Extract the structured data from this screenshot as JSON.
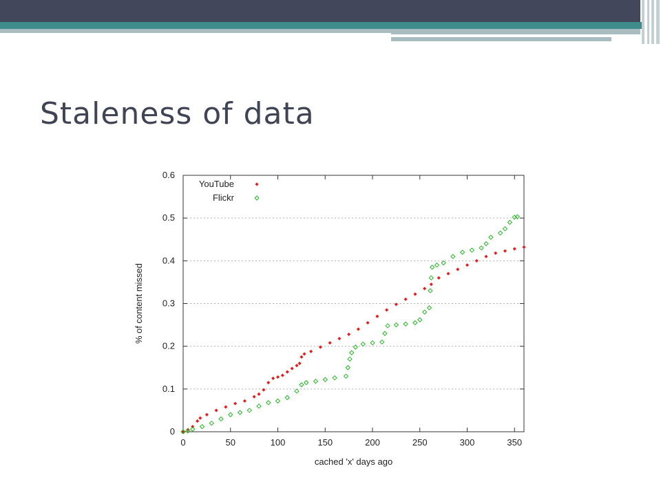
{
  "slide": {
    "title": "Staleness of data"
  },
  "colors": {
    "header_dark": "#43475b",
    "header_teal": "#3f8c8c",
    "header_gray": "#a9bdc1",
    "title": "#404556",
    "youtube": "#e01f1f",
    "flickr": "#22b522"
  },
  "chart_data": {
    "type": "scatter",
    "title": "",
    "xlabel": "cached 'x' days ago",
    "ylabel": "% of content missed",
    "xlim": [
      0,
      360
    ],
    "ylim": [
      0,
      0.6
    ],
    "xticks": [
      "0",
      "50",
      "100",
      "150",
      "200",
      "250",
      "300",
      "350"
    ],
    "yticks": [
      "0",
      "0.1",
      "0.2",
      "0.3",
      "0.4",
      "0.5",
      "0.6"
    ],
    "grid": "horizontal dotted",
    "legend_position": "top-left",
    "series": [
      {
        "name": "YouTube",
        "marker": "filled-diamond",
        "points": [
          [
            0,
            0
          ],
          [
            5,
            0.005
          ],
          [
            10,
            0.012
          ],
          [
            15,
            0.025
          ],
          [
            18,
            0.032
          ],
          [
            25,
            0.04
          ],
          [
            35,
            0.05
          ],
          [
            45,
            0.058
          ],
          [
            55,
            0.066
          ],
          [
            65,
            0.072
          ],
          [
            75,
            0.082
          ],
          [
            80,
            0.088
          ],
          [
            85,
            0.098
          ],
          [
            90,
            0.115
          ],
          [
            95,
            0.125
          ],
          [
            100,
            0.128
          ],
          [
            105,
            0.132
          ],
          [
            110,
            0.14
          ],
          [
            115,
            0.148
          ],
          [
            120,
            0.155
          ],
          [
            123,
            0.16
          ],
          [
            125,
            0.175
          ],
          [
            128,
            0.182
          ],
          [
            135,
            0.188
          ],
          [
            145,
            0.198
          ],
          [
            155,
            0.208
          ],
          [
            165,
            0.218
          ],
          [
            175,
            0.228
          ],
          [
            185,
            0.24
          ],
          [
            195,
            0.255
          ],
          [
            205,
            0.27
          ],
          [
            215,
            0.285
          ],
          [
            225,
            0.298
          ],
          [
            235,
            0.31
          ],
          [
            245,
            0.322
          ],
          [
            255,
            0.335
          ],
          [
            262,
            0.345
          ],
          [
            270,
            0.36
          ],
          [
            280,
            0.37
          ],
          [
            290,
            0.38
          ],
          [
            300,
            0.39
          ],
          [
            310,
            0.4
          ],
          [
            320,
            0.41
          ],
          [
            330,
            0.418
          ],
          [
            340,
            0.423
          ],
          [
            350,
            0.428
          ],
          [
            360,
            0.432
          ]
        ]
      },
      {
        "name": "Flickr",
        "marker": "open-diamond",
        "points": [
          [
            0,
            0
          ],
          [
            5,
            0.002
          ],
          [
            10,
            0.006
          ],
          [
            20,
            0.012
          ],
          [
            30,
            0.02
          ],
          [
            40,
            0.03
          ],
          [
            50,
            0.04
          ],
          [
            60,
            0.045
          ],
          [
            70,
            0.05
          ],
          [
            80,
            0.06
          ],
          [
            90,
            0.068
          ],
          [
            100,
            0.072
          ],
          [
            110,
            0.08
          ],
          [
            120,
            0.095
          ],
          [
            125,
            0.11
          ],
          [
            130,
            0.115
          ],
          [
            140,
            0.118
          ],
          [
            150,
            0.122
          ],
          [
            160,
            0.126
          ],
          [
            172,
            0.13
          ],
          [
            174,
            0.15
          ],
          [
            176,
            0.17
          ],
          [
            178,
            0.185
          ],
          [
            182,
            0.198
          ],
          [
            190,
            0.205
          ],
          [
            200,
            0.208
          ],
          [
            210,
            0.21
          ],
          [
            213,
            0.23
          ],
          [
            216,
            0.248
          ],
          [
            225,
            0.25
          ],
          [
            235,
            0.252
          ],
          [
            245,
            0.255
          ],
          [
            250,
            0.262
          ],
          [
            255,
            0.28
          ],
          [
            260,
            0.29
          ],
          [
            261,
            0.33
          ],
          [
            262,
            0.36
          ],
          [
            263,
            0.385
          ],
          [
            268,
            0.39
          ],
          [
            275,
            0.395
          ],
          [
            285,
            0.41
          ],
          [
            295,
            0.42
          ],
          [
            305,
            0.425
          ],
          [
            315,
            0.43
          ],
          [
            320,
            0.44
          ],
          [
            325,
            0.455
          ],
          [
            335,
            0.465
          ],
          [
            340,
            0.475
          ],
          [
            345,
            0.49
          ],
          [
            350,
            0.502
          ],
          [
            353,
            0.503
          ]
        ]
      }
    ]
  }
}
